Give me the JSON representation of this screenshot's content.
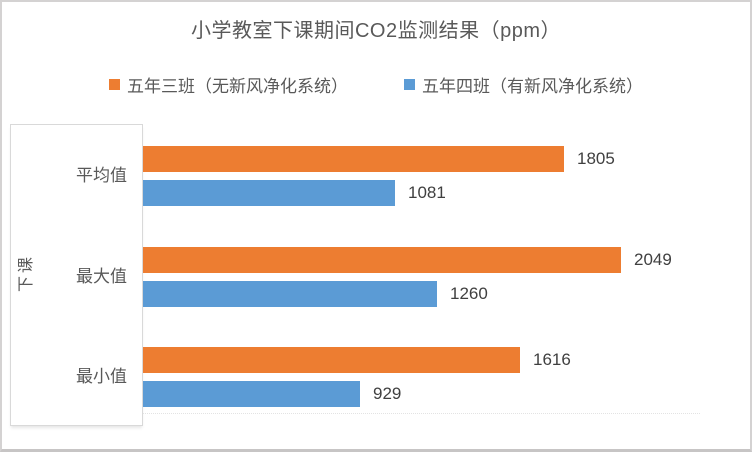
{
  "chart_data": {
    "type": "bar",
    "orientation": "horizontal",
    "title": "小学教室下课期间CO2监测结果（ppm）",
    "categories": [
      "平均值",
      "最大值",
      "最小值"
    ],
    "series": [
      {
        "name": "五年三班（无新风净化系统）",
        "color": "#ED7D31",
        "values": [
          1805,
          2049,
          1616
        ]
      },
      {
        "name": "五年四班（有新风净化系统）",
        "color": "#5B9BD5",
        "values": [
          1081,
          1260,
          929
        ]
      }
    ],
    "ylabel": "下课",
    "xlabel": "",
    "xlim": [
      0,
      2049
    ],
    "grid": false,
    "legend_position": "top",
    "data_labels": true
  },
  "colors": {
    "series1": "#ED7D31",
    "series2": "#5B9BD5",
    "title_text": "#595959",
    "axis_text": "#595959",
    "value_label_text": "#404040",
    "border": "#D9D9D9"
  }
}
